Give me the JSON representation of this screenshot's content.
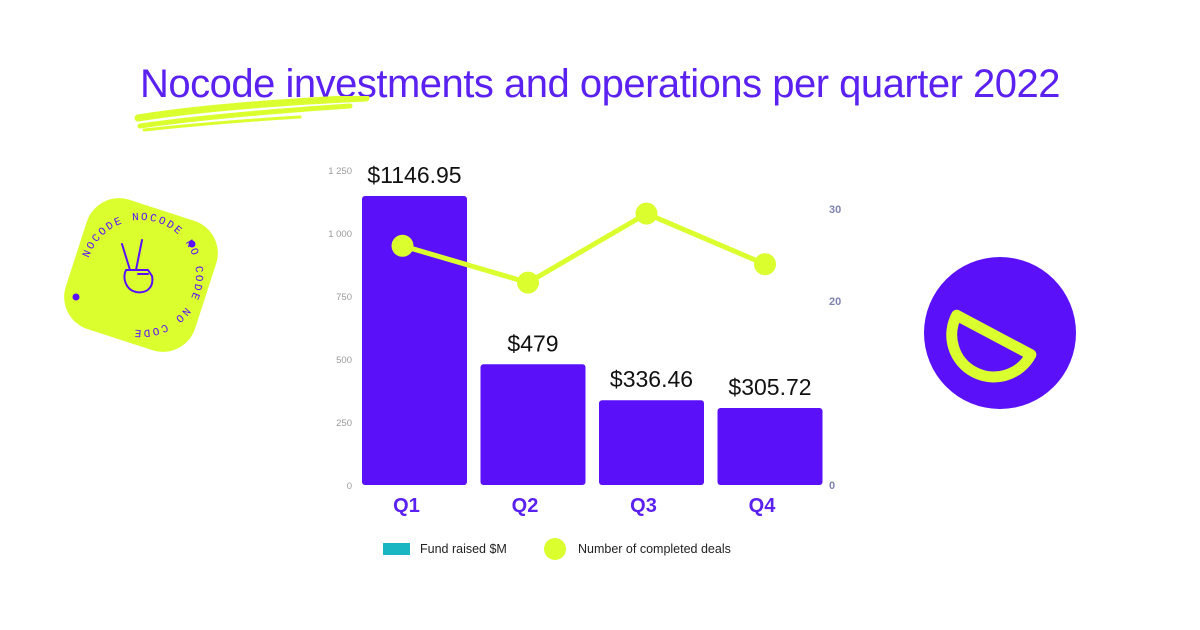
{
  "title": "Nocode investments and operations per quarter 2022",
  "colors": {
    "title": "#5b21f0",
    "bar": "#5a10f8",
    "line": "#dbff2e",
    "legend_funds": "#1ab7c2",
    "axis_tick": "#9a9a9a",
    "axis_right_tick": "#7d84b0"
  },
  "badge": {
    "text": "NOCODE NOCODE NO CODE NO CODE",
    "icon": "victory-hand-icon"
  },
  "logo": {
    "icon": "half-moon-d-icon"
  },
  "chart_data": {
    "type": "bar",
    "title": "Nocode investments and operations per quarter 2022",
    "categories": [
      "Q1",
      "Q2",
      "Q3",
      "Q4"
    ],
    "series": [
      {
        "name": "Fund raised $M",
        "type": "bar",
        "axis": "left",
        "values": [
          1146.95,
          479,
          336.46,
          305.72
        ],
        "labels": [
          "$1146.95",
          "$479",
          "$336.46",
          "$305.72"
        ]
      },
      {
        "name": "Number of completed deals",
        "type": "line",
        "axis": "right",
        "values": [
          26,
          22,
          29.5,
          24
        ]
      }
    ],
    "y_left": {
      "lim": [
        0,
        1250
      ],
      "ticks": [
        0,
        250,
        500,
        750,
        1000,
        1250
      ],
      "tick_labels": [
        "0",
        "250",
        "500",
        "750",
        "1 000",
        "1 250"
      ]
    },
    "y_right": {
      "lim": [
        0,
        30
      ],
      "ticks": [
        0,
        10,
        20,
        30
      ],
      "tick_labels": [
        "0",
        "",
        "20",
        "30"
      ]
    },
    "legend_position": "bottom",
    "grid": false,
    "xlabel": "",
    "ylabel": ""
  },
  "legend": {
    "funds_label": "Fund raised $M",
    "deals_label": "Number of completed deals"
  }
}
